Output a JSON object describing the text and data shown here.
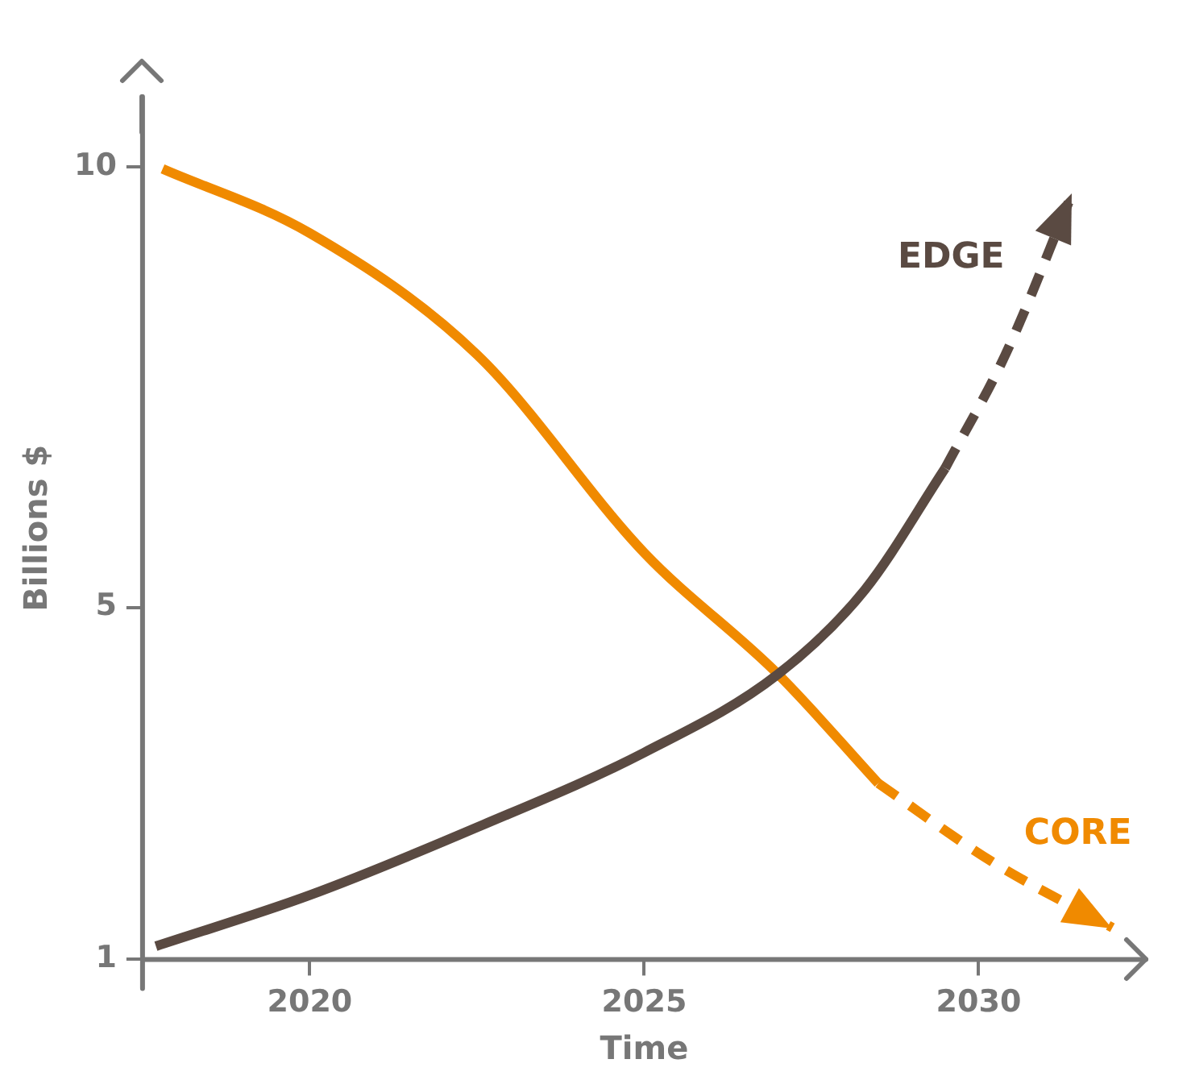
{
  "chart_data": {
    "type": "line",
    "xlabel": "Time",
    "ylabel": "Billions $",
    "xlim": [
      2017.5,
      2032.5
    ],
    "xticks": [
      2020,
      2025,
      2030
    ],
    "ylim": [
      1,
      10.8
    ],
    "yticks": [
      1,
      5,
      10
    ],
    "marker": "none",
    "series": [
      {
        "color": "#5a4a42",
        "line_style": "solid",
        "x": [
          2017.7,
          2020,
          2022.5,
          2025,
          2027,
          2028.3,
          2029.5
        ],
        "values": [
          1.15,
          1.73,
          2.5,
          3.35,
          4.24,
          5.2,
          6.58
        ]
      },
      {
        "name": "EDGE",
        "color": "#5a4a42",
        "line_style": "dashed",
        "x": [
          2029.5,
          2030.4,
          2031.4
        ],
        "values": [
          6.58,
          7.87,
          9.7
        ]
      },
      {
        "color": "#f08a00",
        "line_style": "solid",
        "x": [
          2017.8,
          2020,
          2022.5,
          2025,
          2027,
          2028.5
        ],
        "values": [
          9.98,
          9.25,
          7.87,
          5.62,
          4.24,
          3.0
        ]
      },
      {
        "name": "CORE",
        "color": "#f08a00",
        "line_style": "dashed",
        "x": [
          2028.5,
          2030.2,
          2032
        ],
        "values": [
          3.0,
          2.11,
          1.36
        ]
      }
    ]
  }
}
